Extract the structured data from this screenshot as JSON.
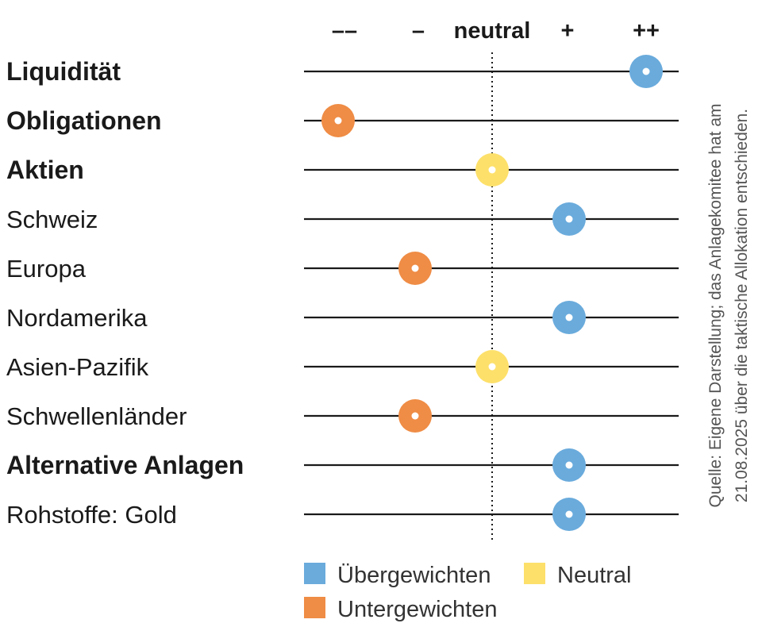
{
  "chart_data": {
    "type": "scatter",
    "scale": {
      "levels": [
        -2,
        -1,
        0,
        1,
        2
      ],
      "labels": [
        "––",
        "–",
        "neutral",
        "+",
        "++"
      ],
      "neutral_value": 0,
      "neutral_line": "dotted"
    },
    "rows": [
      {
        "label": "Liquidität",
        "bold": true,
        "value": 2,
        "category": "over"
      },
      {
        "label": "Obligationen",
        "bold": true,
        "value": -2,
        "category": "under"
      },
      {
        "label": "Aktien",
        "bold": true,
        "value": 0,
        "category": "neutral"
      },
      {
        "label": "Schweiz",
        "bold": false,
        "value": 1,
        "category": "over"
      },
      {
        "label": "Europa",
        "bold": false,
        "value": -1,
        "category": "under"
      },
      {
        "label": "Nordamerika",
        "bold": false,
        "value": 1,
        "category": "over"
      },
      {
        "label": "Asien-Pazifik",
        "bold": false,
        "value": 0,
        "category": "neutral"
      },
      {
        "label": "Schwellenländer",
        "bold": false,
        "value": -1,
        "category": "under"
      },
      {
        "label": "Alternative Anlagen",
        "bold": true,
        "value": 1,
        "category": "over"
      },
      {
        "label": "Rohstoffe: Gold",
        "bold": false,
        "value": 1,
        "category": "over"
      }
    ],
    "legend": [
      {
        "key": "over",
        "label": "Übergewichten",
        "color": "#6aabdc"
      },
      {
        "key": "neutral",
        "label": "Neutral",
        "color": "#fde06a"
      },
      {
        "key": "under",
        "label": "Untergewichten",
        "color": "#ef8c45"
      }
    ],
    "colors": {
      "over": "#6aabdc",
      "neutral": "#fde06a",
      "under": "#ef8c45"
    },
    "legend_placement": "bottom"
  },
  "source_note": {
    "line1": "Quelle: Eigene Darstellung; das Anlagekomitee hat am",
    "line2": "21.08.2025 über die taktische Allokation entschieden."
  }
}
